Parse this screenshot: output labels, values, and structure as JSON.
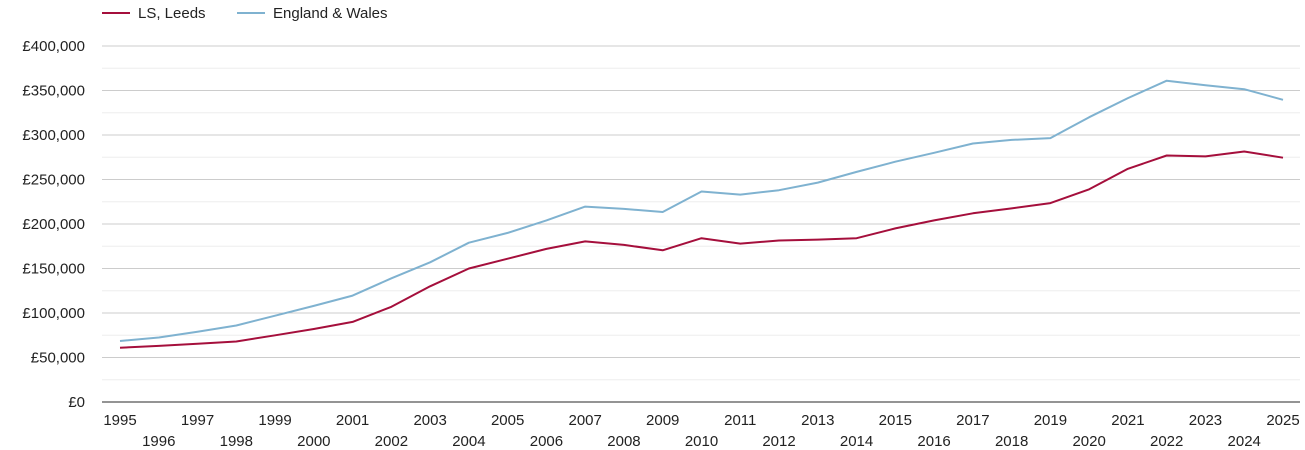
{
  "chart_data": {
    "type": "line",
    "title": "",
    "xlabel": "",
    "ylabel": "",
    "x": [
      1995,
      1996,
      1997,
      1998,
      1999,
      2000,
      2001,
      2002,
      2003,
      2004,
      2005,
      2006,
      2007,
      2008,
      2009,
      2010,
      2011,
      2012,
      2013,
      2014,
      2015,
      2016,
      2017,
      2018,
      2019,
      2020,
      2021,
      2022,
      2023,
      2024,
      2025
    ],
    "ylim": [
      0,
      400000
    ],
    "yticks": [
      0,
      50000,
      100000,
      150000,
      200000,
      250000,
      300000,
      350000,
      400000
    ],
    "ytick_labels": [
      "£0",
      "£50,000",
      "£100,000",
      "£150,000",
      "£200,000",
      "£250,000",
      "£300,000",
      "£350,000",
      "£400,000"
    ],
    "legend_position": "top-left",
    "grid": true,
    "series": [
      {
        "name": "LS, Leeds",
        "color": "#a50f3c",
        "values": [
          61000,
          63000,
          65500,
          68000,
          75000,
          82000,
          90000,
          107000,
          130000,
          150000,
          161000,
          172000,
          180500,
          176500,
          170500,
          184000,
          178000,
          181500,
          182500,
          184000,
          195000,
          204000,
          212000,
          217500,
          223500,
          239000,
          262000,
          277000,
          276000,
          281500,
          274500
        ]
      },
      {
        "name": "England & Wales",
        "color": "#7fb2d0",
        "values": [
          68500,
          72500,
          79000,
          86000,
          97000,
          108000,
          119500,
          139000,
          157000,
          179000,
          190000,
          204000,
          219500,
          217000,
          213500,
          236500,
          233000,
          238000,
          246500,
          258500,
          270000,
          280000,
          290500,
          294500,
          296500,
          320000,
          341500,
          361000,
          356000,
          351500,
          339500
        ]
      }
    ]
  }
}
